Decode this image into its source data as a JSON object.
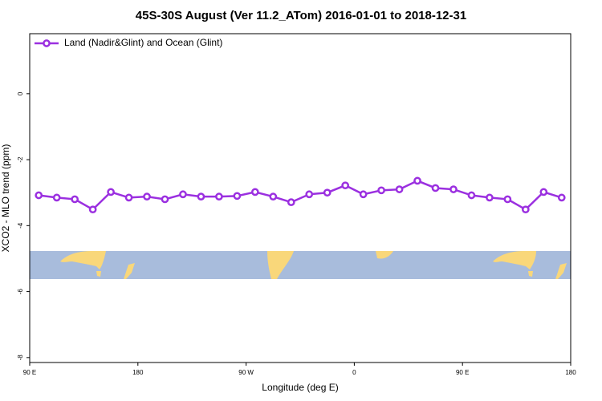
{
  "chart_data": {
    "type": "line",
    "title": "45S-30S August (Ver 11.2_ATom)   2016-01-01 to 2018-12-31",
    "x_label": "Longitude (deg E)",
    "y_label": "XCO2 - MLO trend (ppm)",
    "x": [
      97.5,
      112.5,
      127.5,
      142.5,
      157.5,
      172.5,
      187.5,
      202.5,
      217.5,
      232.5,
      247.5,
      262.5,
      277.5,
      292.5,
      307.5,
      322.5,
      337.5,
      352.5,
      367.5,
      382.5,
      397.5,
      412.5,
      427.5,
      442.5,
      457.5,
      472.5,
      487.5,
      502.5,
      517.5,
      532.5
    ],
    "series": [
      {
        "name": "Land (Nadir&Glint) and Ocean (Glint)",
        "color": "#9b30e0",
        "values": [
          -3.08,
          -3.15,
          -3.2,
          -3.51,
          -2.98,
          -3.15,
          -3.12,
          -3.2,
          -3.05,
          -3.12,
          -3.12,
          -3.1,
          -2.98,
          -3.12,
          -3.29,
          -3.05,
          -3.0,
          -2.78,
          -3.05,
          -2.93,
          -2.9,
          -2.64,
          -2.86,
          -2.9,
          -3.08,
          -3.15,
          -3.2,
          -3.51,
          -2.98,
          -3.15
        ]
      }
    ],
    "xlim": [
      90,
      540
    ],
    "xticks": [
      {
        "value": 90,
        "label": "90 E"
      },
      {
        "value": 180,
        "label": "180"
      },
      {
        "value": 270,
        "label": "90 W"
      },
      {
        "value": 360,
        "label": "0"
      },
      {
        "value": 450,
        "label": "90 E"
      },
      {
        "value": 540,
        "label": "180"
      }
    ],
    "ylim": [
      -8.15,
      1.82
    ],
    "yticks": [
      0,
      -2,
      -4,
      -6,
      -8
    ],
    "legend": "upper left"
  }
}
